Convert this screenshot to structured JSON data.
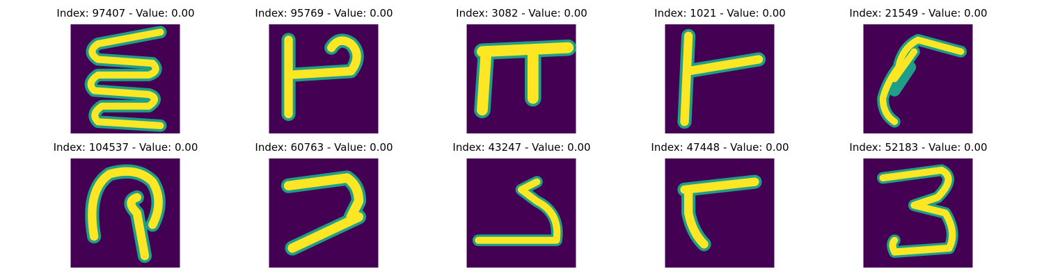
{
  "colors": {
    "background": "#440154",
    "edge": "#1f9e89",
    "stroke_mid": "#35b779",
    "stroke": "#fde725"
  },
  "grid": [
    {
      "title": "Index: 97407 - Value: 0.00",
      "glyph": "zigzag-e-icon"
    },
    {
      "title": "Index: 95769 - Value: 0.00",
      "glyph": "p-hook-glyph-icon"
    },
    {
      "title": "Index: 3082 - Value: 0.00",
      "glyph": "pi-glyph-icon"
    },
    {
      "title": "Index: 1021 - Value: 0.00",
      "glyph": "t-sideways-glyph-icon"
    },
    {
      "title": "Index: 21549 - Value: 0.00",
      "glyph": "curl-glyph-icon"
    },
    {
      "title": "Index: 104537 - Value: 0.00",
      "glyph": "loop-glyph-icon"
    },
    {
      "title": "Index: 60763 - Value: 0.00",
      "glyph": "seven-like-glyph-icon"
    },
    {
      "title": "Index: 43247 - Value: 0.00",
      "glyph": "arrow-s-glyph-icon"
    },
    {
      "title": "Index: 47448 - Value: 0.00",
      "glyph": "r-like-glyph-icon"
    },
    {
      "title": "Index: 52183 - Value: 0.00",
      "glyph": "three-glyph-icon"
    }
  ]
}
